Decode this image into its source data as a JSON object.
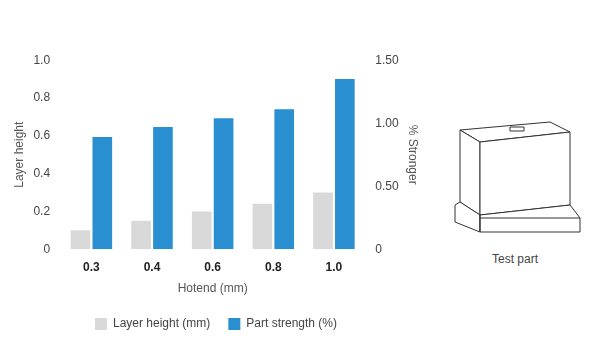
{
  "chart_data": {
    "type": "bar",
    "categories": [
      "0.3",
      "0.4",
      "0.6",
      "0.8",
      "1.0"
    ],
    "x_label": "Hotend (mm)",
    "y_label": "Layer height",
    "y2_label": "% Stronger",
    "series": [
      {
        "name": "Layer height (mm)",
        "color": "#d9d9d9",
        "values": [
          0.1,
          0.15,
          0.2,
          0.24,
          0.3
        ]
      },
      {
        "name": "Part strength (%)",
        "color": "#2a8fd1",
        "values": [
          0.89,
          0.97,
          1.04,
          1.11,
          1.35
        ],
        "axis": "y2"
      }
    ],
    "ylim": [
      0,
      1
    ],
    "yticks": [
      0,
      0.2,
      0.4,
      0.6,
      0.8,
      {
        "value": 1,
        "label": "1.0"
      }
    ],
    "y2lim": [
      0,
      1.5
    ],
    "y2ticks": [
      0,
      {
        "value": 0.5,
        "label": "0.50"
      },
      {
        "value": 1,
        "label": "1.00"
      },
      {
        "value": 1.5,
        "label": "1.50"
      }
    ],
    "grid": false,
    "legend": "bottom",
    "annotations": [
      "Test part"
    ]
  }
}
